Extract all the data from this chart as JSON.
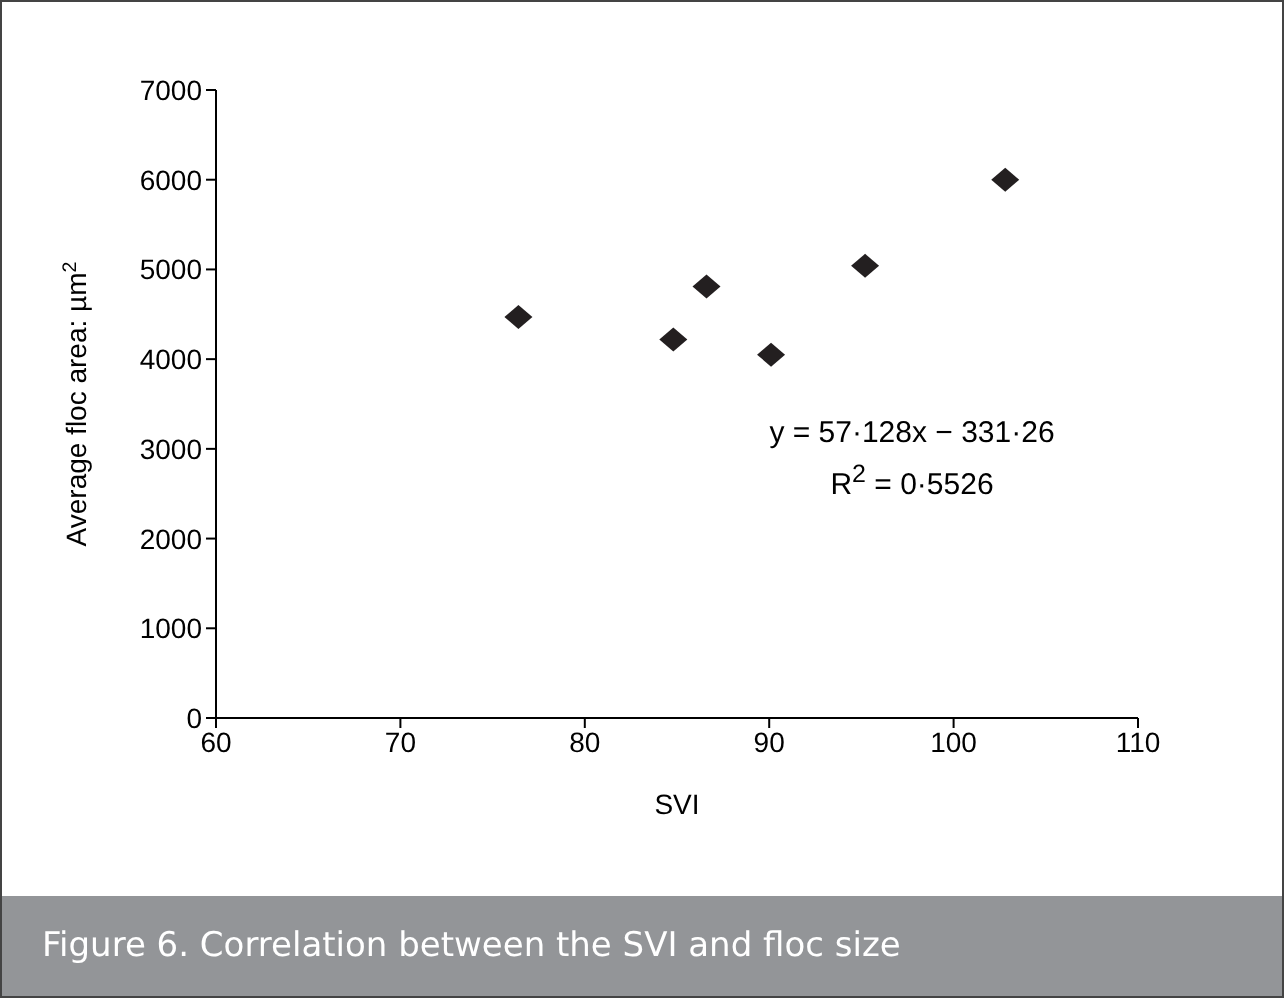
{
  "chart_data": {
    "type": "scatter",
    "title": "Figure 6. Correlation between the SVI and floc size",
    "xlabel": "SVI",
    "ylabel": "Average floc area: µm$^{2}$",
    "x": [
      76.4,
      84.8,
      86.6,
      90.1,
      95.2,
      102.8
    ],
    "series": [
      {
        "color": "#231f20",
        "values": [
          4470,
          4220,
          4810,
          4050,
          5040,
          6000
        ]
      }
    ],
    "xlim": [
      60,
      110
    ],
    "xticks": [
      60,
      70,
      80,
      90,
      100,
      110
    ],
    "ylim": [
      0,
      7000
    ],
    "yticks": [
      0,
      1000,
      2000,
      3000,
      4000,
      5000,
      6000,
      7000
    ],
    "marker": "diamond",
    "annotations": [
      "y = 57·128x − 331·26",
      "R$^{2}$ = 0·5526"
    ]
  }
}
